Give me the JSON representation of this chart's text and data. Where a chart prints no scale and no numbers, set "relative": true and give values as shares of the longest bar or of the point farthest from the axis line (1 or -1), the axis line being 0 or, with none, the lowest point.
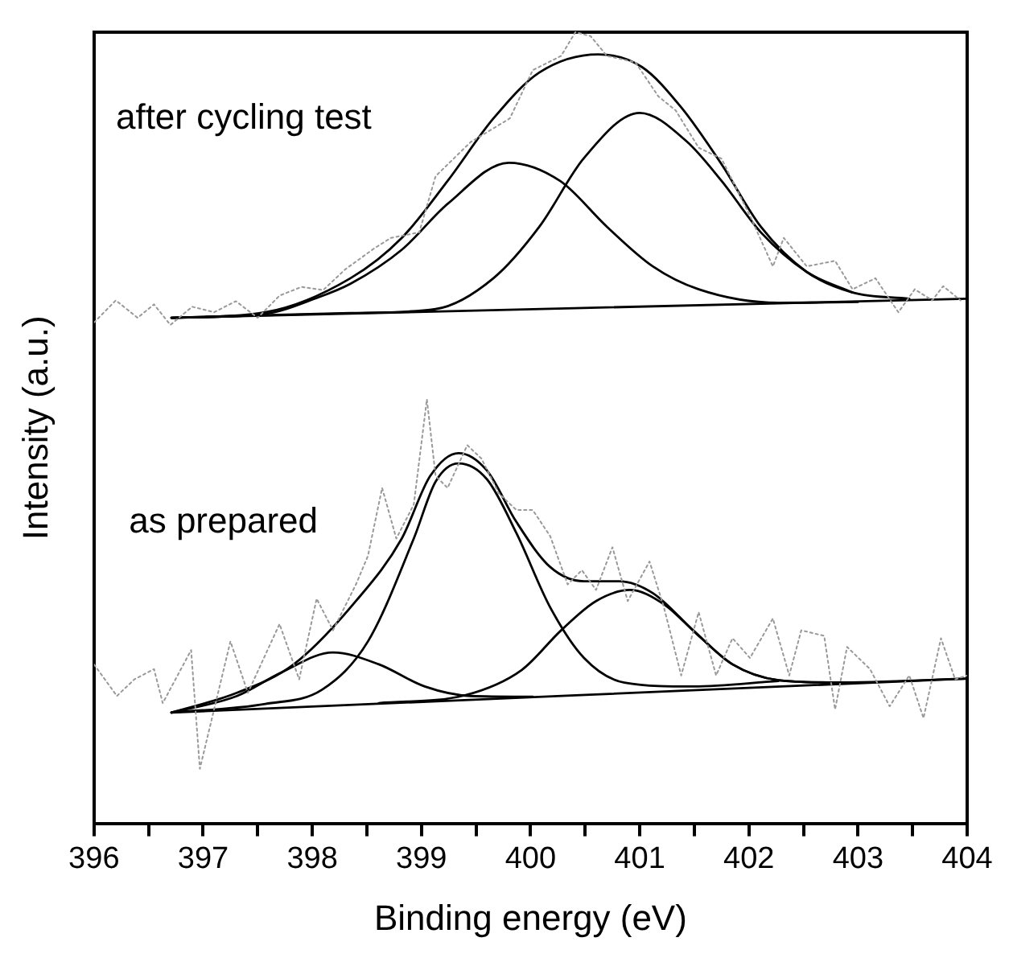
{
  "chart_data": {
    "type": "line",
    "relative": true,
    "xlabel": "Binding energy (eV)",
    "ylabel": "Intensity (a.u.)",
    "marker": "none",
    "xlim": [
      396,
      404
    ],
    "xticks": [
      396,
      {
        "value": 396.5,
        "label": null
      },
      397,
      {
        "value": 397.5,
        "label": null
      },
      398,
      {
        "value": 398.5,
        "label": null
      },
      399,
      {
        "value": 399.5,
        "label": null
      },
      400,
      {
        "value": 400.5,
        "label": null
      },
      401,
      {
        "value": 401.5,
        "label": null
      },
      402,
      {
        "value": 402.5,
        "label": null
      },
      403,
      {
        "value": 403.5,
        "label": null
      },
      404
    ],
    "annotations": [
      "after cycling test",
      "as prepared"
    ],
    "series": [
      {
        "color": "#999999",
        "line_style": "dotted",
        "x": [
          396.0,
          396.2,
          396.4,
          396.55,
          396.7,
          396.9,
          397.1,
          397.3,
          397.5,
          397.7,
          397.9,
          398.1,
          398.3,
          398.56,
          398.72,
          398.98,
          399.13,
          399.45,
          399.81,
          400.02,
          400.28,
          400.41,
          400.55,
          400.7,
          400.96,
          401.17,
          401.33,
          401.54,
          401.75,
          402.01,
          402.22,
          402.32,
          402.53,
          402.79,
          402.95,
          403.16,
          403.37,
          403.52,
          403.68,
          403.78,
          403.94
        ],
        "values": [
          0.633,
          0.661,
          0.639,
          0.656,
          0.63,
          0.653,
          0.646,
          0.66,
          0.639,
          0.667,
          0.678,
          0.674,
          0.7,
          0.726,
          0.74,
          0.747,
          0.818,
          0.861,
          0.891,
          0.952,
          0.97,
          1.0,
          0.995,
          0.97,
          0.962,
          0.919,
          0.901,
          0.854,
          0.84,
          0.768,
          0.704,
          0.74,
          0.704,
          0.711,
          0.675,
          0.689,
          0.646,
          0.675,
          0.661,
          0.679,
          0.661
        ]
      },
      {
        "color": "#000000",
        "line_style": "solid",
        "x": [
          396.71,
          404.0
        ],
        "values": [
          0.639,
          0.663
        ]
      },
      {
        "color": "#000000",
        "line_style": "solid",
        "x": [
          396.71,
          397.57,
          398.35,
          398.82,
          399.24,
          399.66,
          400.08,
          400.62,
          401.02,
          401.38,
          401.75,
          402.11,
          402.53,
          402.95,
          403.47
        ],
        "values": [
          0.639,
          0.646,
          0.689,
          0.74,
          0.812,
          0.891,
          0.949,
          0.972,
          0.956,
          0.905,
          0.833,
          0.754,
          0.697,
          0.671,
          0.663
        ]
      },
      {
        "color": "#000000",
        "line_style": "solid",
        "x": [
          396.71,
          397.57,
          398.04,
          398.35,
          398.82,
          399.24,
          399.8,
          400.27,
          400.7,
          401.12,
          401.54,
          402.27,
          403.0
        ],
        "values": [
          0.639,
          0.644,
          0.664,
          0.682,
          0.725,
          0.783,
          0.835,
          0.812,
          0.754,
          0.704,
          0.675,
          0.658,
          0.659
        ]
      },
      {
        "color": "#000000",
        "line_style": "solid",
        "x": [
          396.71,
          398.35,
          399.13,
          399.66,
          400.08,
          400.49,
          401.0,
          401.43,
          401.75,
          402.11,
          402.53,
          402.95
        ],
        "values": [
          0.639,
          0.645,
          0.65,
          0.689,
          0.754,
          0.841,
          0.898,
          0.862,
          0.812,
          0.747,
          0.697,
          0.671
        ]
      },
      {
        "color": "#999999",
        "line_style": "dotted",
        "x": [
          396.0,
          396.21,
          396.37,
          396.55,
          396.63,
          396.89,
          396.97,
          397.25,
          397.41,
          397.7,
          397.88,
          398.04,
          398.19,
          398.4,
          398.51,
          398.64,
          398.77,
          398.93,
          399.05,
          399.13,
          399.24,
          399.42,
          399.55,
          399.71,
          399.87,
          400.02,
          400.18,
          400.34,
          400.47,
          400.6,
          400.75,
          400.89,
          401.09,
          401.22,
          401.38,
          401.54,
          401.7,
          401.85,
          402.01,
          402.22,
          402.37,
          402.48,
          402.69,
          402.79,
          402.9,
          403.11,
          403.29,
          403.47,
          403.6,
          403.76,
          403.89,
          404.0
        ],
        "values": [
          0.201,
          0.161,
          0.182,
          0.195,
          0.152,
          0.219,
          0.069,
          0.23,
          0.165,
          0.252,
          0.182,
          0.284,
          0.244,
          0.302,
          0.338,
          0.424,
          0.36,
          0.403,
          0.536,
          0.439,
          0.424,
          0.478,
          0.461,
          0.417,
          0.396,
          0.396,
          0.363,
          0.302,
          0.32,
          0.295,
          0.349,
          0.281,
          0.331,
          0.274,
          0.187,
          0.267,
          0.187,
          0.234,
          0.209,
          0.259,
          0.187,
          0.244,
          0.237,
          0.144,
          0.223,
          0.195,
          0.148,
          0.187,
          0.133,
          0.234,
          0.182,
          0.187
        ]
      },
      {
        "color": "#000000",
        "line_style": "solid",
        "x": [
          396.71,
          404.0
        ],
        "values": [
          0.14,
          0.183
        ]
      },
      {
        "color": "#000000",
        "line_style": "solid",
        "x": [
          396.71,
          397.31,
          397.83,
          398.4,
          398.82,
          399.08,
          399.34,
          399.6,
          399.87,
          400.18,
          400.49,
          400.81,
          401.12,
          401.49,
          401.85,
          402.27,
          402.79
        ],
        "values": [
          0.14,
          0.165,
          0.201,
          0.281,
          0.36,
          0.439,
          0.468,
          0.446,
          0.381,
          0.324,
          0.306,
          0.306,
          0.291,
          0.244,
          0.201,
          0.181,
          0.178
        ]
      },
      {
        "color": "#000000",
        "line_style": "solid",
        "x": [
          396.71,
          397.31,
          397.72,
          398.19,
          398.61,
          399.03,
          399.45,
          400.02
        ],
        "values": [
          0.14,
          0.161,
          0.191,
          0.216,
          0.201,
          0.173,
          0.161,
          0.16
        ]
      },
      {
        "color": "#000000",
        "line_style": "solid",
        "x": [
          396.71,
          397.57,
          398.09,
          398.51,
          398.93,
          399.13,
          399.34,
          399.6,
          399.87,
          400.18,
          400.49,
          400.86,
          401.49,
          402.27
        ],
        "values": [
          0.14,
          0.151,
          0.169,
          0.23,
          0.36,
          0.432,
          0.455,
          0.435,
          0.367,
          0.273,
          0.209,
          0.178,
          0.173,
          0.18
        ]
      },
      {
        "color": "#000000",
        "line_style": "solid",
        "x": [
          398.61,
          399.4,
          399.92,
          400.28,
          400.6,
          400.91,
          401.22,
          401.54,
          401.85,
          402.27,
          402.79,
          404.0
        ],
        "values": [
          0.152,
          0.162,
          0.194,
          0.244,
          0.281,
          0.295,
          0.277,
          0.237,
          0.201,
          0.181,
          0.178,
          0.183
        ]
      }
    ]
  }
}
